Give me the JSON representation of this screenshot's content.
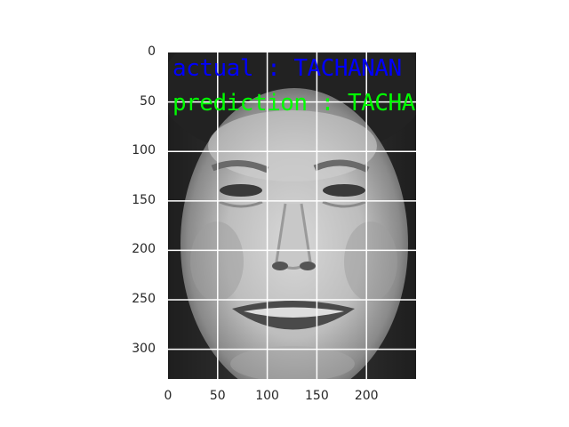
{
  "figure": {
    "image_content": "grayscale face photo",
    "overlay": {
      "actual_text": "actual : TACHANAN",
      "actual_color": "#0000ff",
      "prediction_text": "prediction : TACHANAN",
      "prediction_color": "#00ff00"
    },
    "axes": {
      "x_ticks": [
        "0",
        "50",
        "100",
        "150",
        "200"
      ],
      "y_ticks": [
        "0",
        "50",
        "100",
        "150",
        "200",
        "250",
        "300"
      ],
      "x_range": [
        0,
        250
      ],
      "y_range": [
        0,
        330
      ],
      "grid": true,
      "grid_color": "#ffffff"
    },
    "tick_color": "#262626"
  }
}
